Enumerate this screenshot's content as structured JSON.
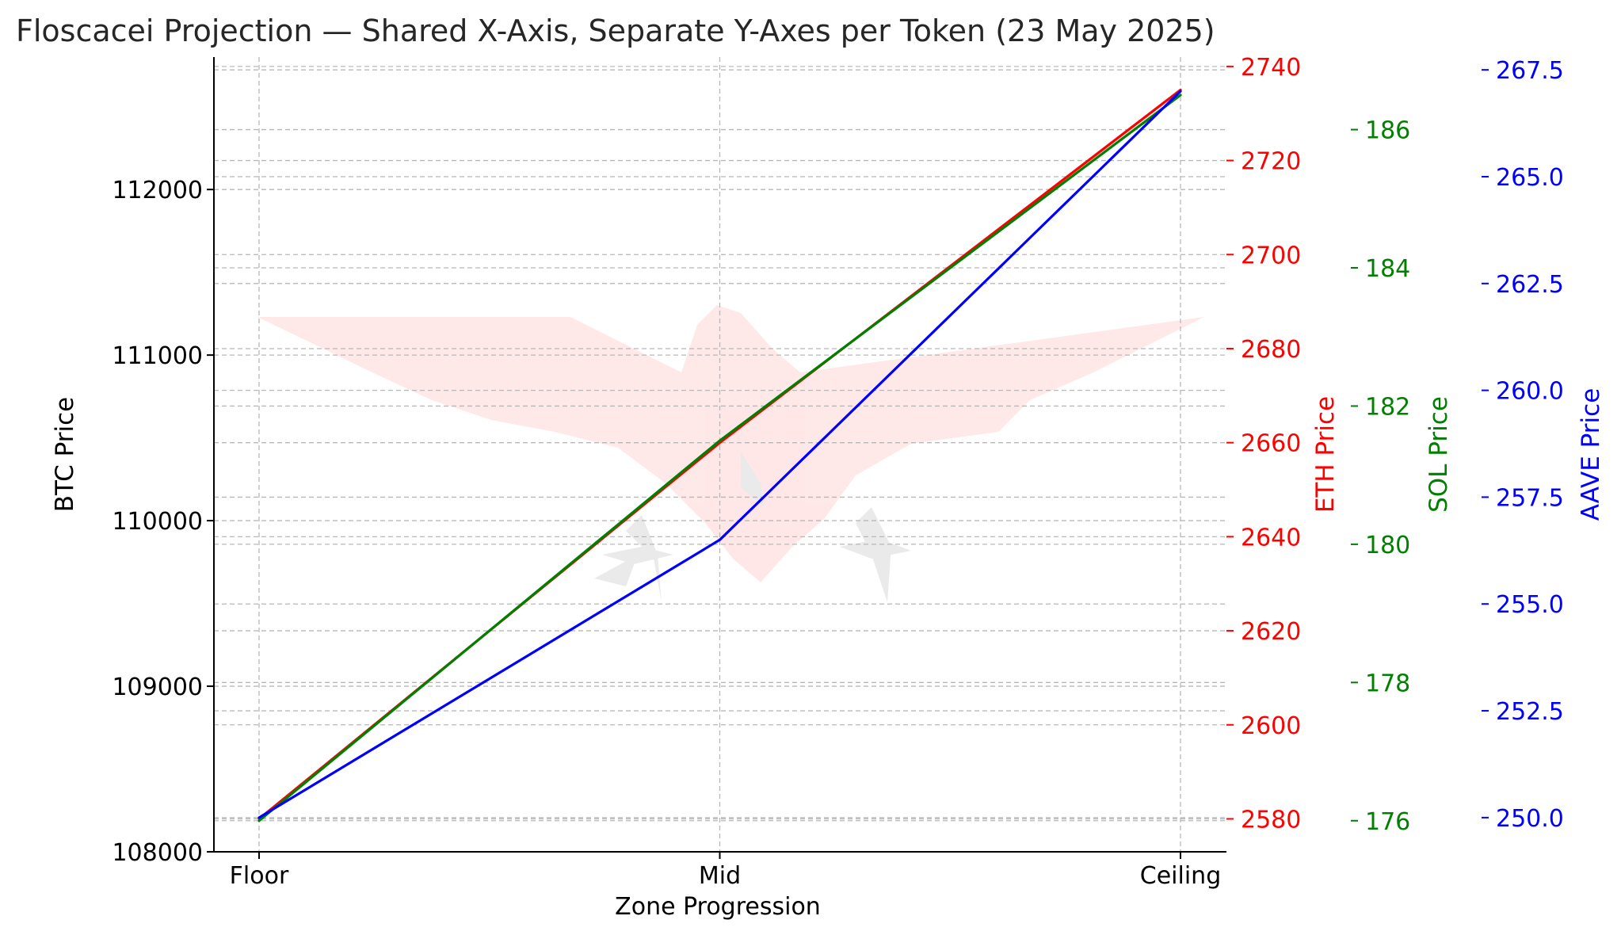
{
  "chart_data": {
    "type": "line",
    "title": "Floscacei Projection — Shared X-Axis, Separate Y-Axes per Token (23 May 2025)",
    "xlabel": "Zone Progression",
    "categories": [
      "Floor",
      "Mid",
      "Ceiling"
    ],
    "grid": true,
    "series": [
      {
        "name": "BTC",
        "axis_label": "BTC Price",
        "color": "#000000",
        "values": [
          108200,
          110500,
          112600
        ],
        "ylim": [
          108000,
          112800
        ],
        "ticks": [
          108000,
          109000,
          110000,
          111000,
          112000
        ],
        "tick_labels": [
          "108000",
          "109000",
          "110000",
          "111000",
          "112000"
        ],
        "visible_line": false
      },
      {
        "name": "ETH",
        "axis_label": "ETH Price",
        "color": "#ff0000",
        "values": [
          2580,
          2660,
          2735
        ],
        "ylim": [
          2573,
          2742
        ],
        "ticks": [
          2580,
          2600,
          2620,
          2640,
          2660,
          2680,
          2700,
          2720,
          2740
        ],
        "tick_labels": [
          "2580",
          "2600",
          "2620",
          "2640",
          "2660",
          "2680",
          "2700",
          "2720",
          "2740"
        ],
        "visible_line": true
      },
      {
        "name": "SOL",
        "axis_label": "SOL Price",
        "color": "#008000",
        "values": [
          176,
          181.5,
          186.5
        ],
        "ylim": [
          175.55,
          187.05
        ],
        "ticks": [
          176,
          178,
          180,
          182,
          184,
          186
        ],
        "tick_labels": [
          "176",
          "178",
          "180",
          "182",
          "184",
          "186"
        ],
        "visible_line": true
      },
      {
        "name": "AAVE",
        "axis_label": "AAVE Price",
        "color": "#0000ff",
        "values": [
          250,
          256.5,
          267
        ],
        "ylim": [
          249.2,
          267.8
        ],
        "ticks": [
          250,
          252.5,
          255,
          257.5,
          260,
          262.5,
          265,
          267.5
        ],
        "tick_labels": [
          "250.0",
          "252.5",
          "255.0",
          "257.5",
          "260.0",
          "262.5",
          "265.0",
          "267.5"
        ],
        "visible_line": true
      }
    ]
  }
}
